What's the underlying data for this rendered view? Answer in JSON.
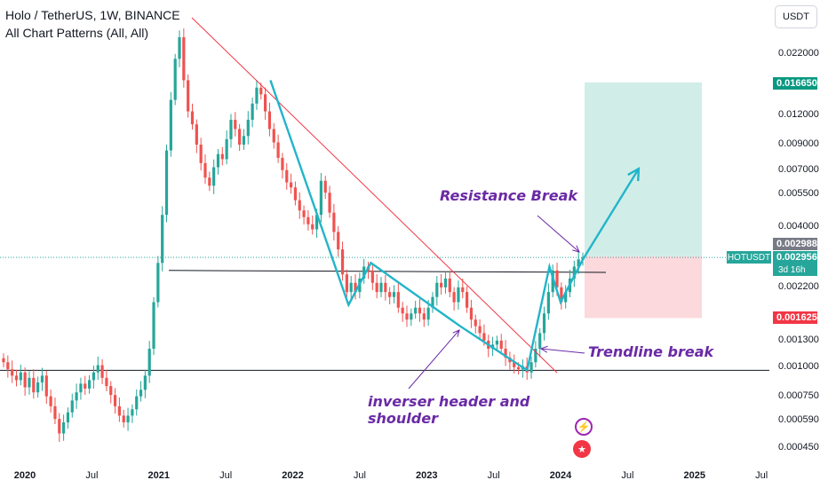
{
  "header": {
    "title": "Holo / TetherUS, 1W, BINANCE",
    "indicator": "All Chart Patterns (All, All)"
  },
  "currency_button": "USDT",
  "y_axis": {
    "labels": [
      {
        "text": "0.022000",
        "value": 0.022
      },
      {
        "text": "0.012000",
        "value": 0.012
      },
      {
        "text": "0.009000",
        "value": 0.009
      },
      {
        "text": "0.007000",
        "value": 0.007
      },
      {
        "text": "0.005500",
        "value": 0.0055
      },
      {
        "text": "0.004000",
        "value": 0.004
      },
      {
        "text": "0.002200",
        "value": 0.0022
      },
      {
        "text": "0.001300",
        "value": 0.0013
      },
      {
        "text": "0.001000",
        "value": 0.001
      },
      {
        "text": "0.000750",
        "value": 0.00075
      },
      {
        "text": "0.000590",
        "value": 0.00059
      },
      {
        "text": "0.000450",
        "value": 0.00045
      }
    ]
  },
  "x_axis": {
    "labels": [
      {
        "text": "2020",
        "bold": true
      },
      {
        "text": "Jul",
        "bold": false
      },
      {
        "text": "2021",
        "bold": true
      },
      {
        "text": "Jul",
        "bold": false
      },
      {
        "text": "2022",
        "bold": true
      },
      {
        "text": "Jul",
        "bold": false
      },
      {
        "text": "2023",
        "bold": true
      },
      {
        "text": "Jul",
        "bold": false
      },
      {
        "text": "2024",
        "bold": true
      },
      {
        "text": "Jul",
        "bold": false
      },
      {
        "text": "2025",
        "bold": true
      },
      {
        "text": "Jul",
        "bold": false
      }
    ]
  },
  "price_tags": {
    "target": {
      "text": "0.016650",
      "color": "#089981"
    },
    "high": {
      "text": "0.002988",
      "color": "#787b86"
    },
    "last": {
      "text": "0.002956",
      "color": "#26a69a"
    },
    "stop": {
      "text": "0.001625",
      "color": "#f23645"
    },
    "symbol": "HOTUSDT",
    "countdown": "3d 16h"
  },
  "annotations": {
    "resistance": "Resistance  Break",
    "trendline": "Trendline break",
    "pattern": "inverser header and shoulder"
  },
  "colors": {
    "up": "#26a69a",
    "down": "#ef5350",
    "pattern_line": "#22b5c9",
    "trendline": "#f23645",
    "profit_zone": "#d1ede8",
    "loss_zone": "#fbd9dc",
    "annotation": "#6a2aa5"
  },
  "chart_data": {
    "type": "candlestick",
    "symbol": "HOTUSDT",
    "interval": "1W",
    "key_levels": {
      "neckline": 0.0026,
      "support": 0.00097,
      "target": 0.01665,
      "stop_loss": 0.001625,
      "entry": 0.002988,
      "last_price": 0.002956
    },
    "pattern_points": [
      {
        "date": "2021-11",
        "price": 0.017
      },
      {
        "date": "2022-06",
        "price": 0.00185
      },
      {
        "date": "2022-08",
        "price": 0.0028
      },
      {
        "date": "2023-04",
        "price": 0.0015
      },
      {
        "date": "2023-10",
        "price": 0.00097
      },
      {
        "date": "2023-12",
        "price": 0.0027
      },
      {
        "date": "2024-01",
        "price": 0.0019
      },
      {
        "date": "2024-03",
        "price": 0.0029
      },
      {
        "date": "2024-08",
        "price": 0.0071
      }
    ],
    "closes": [
      0.00105,
      0.00098,
      0.00092,
      0.00088,
      0.00095,
      0.00082,
      0.0009,
      0.00078,
      0.00086,
      0.00092,
      0.00075,
      0.00068,
      0.0006,
      0.00052,
      0.00058,
      0.00064,
      0.00072,
      0.00078,
      0.00085,
      0.00081,
      0.00088,
      0.00095,
      0.00102,
      0.0009,
      0.00083,
      0.00076,
      0.00068,
      0.00062,
      0.00058,
      0.00062,
      0.00066,
      0.00075,
      0.0008,
      0.00092,
      0.0012,
      0.0019,
      0.0028,
      0.0045,
      0.0085,
      0.014,
      0.021,
      0.026,
      0.017,
      0.0125,
      0.011,
      0.009,
      0.0075,
      0.0065,
      0.006,
      0.0072,
      0.0082,
      0.0078,
      0.0095,
      0.0115,
      0.0105,
      0.009,
      0.0098,
      0.0115,
      0.0135,
      0.0158,
      0.0148,
      0.0125,
      0.0105,
      0.0092,
      0.0079,
      0.007,
      0.0062,
      0.0059,
      0.0052,
      0.0047,
      0.0044,
      0.0041,
      0.0039,
      0.0045,
      0.0063,
      0.0056,
      0.0046,
      0.0038,
      0.0032,
      0.0025,
      0.0021,
      0.0023,
      0.0021,
      0.0024,
      0.0027,
      0.0026,
      0.0023,
      0.0021,
      0.0023,
      0.0021,
      0.002,
      0.0021,
      0.0018,
      0.0017,
      0.0016,
      0.0017,
      0.0018,
      0.0017,
      0.0016,
      0.0018,
      0.002,
      0.0023,
      0.0022,
      0.0024,
      0.0021,
      0.0019,
      0.0022,
      0.0021,
      0.0018,
      0.0016,
      0.0015,
      0.0014,
      0.0013,
      0.0012,
      0.00125,
      0.0013,
      0.0012,
      0.0011,
      0.00105,
      0.001,
      0.00098,
      0.00101,
      0.00095,
      0.00105,
      0.0012,
      0.0014,
      0.0017,
      0.0021,
      0.0026,
      0.0022,
      0.0019,
      0.0021,
      0.0024,
      0.0027,
      0.0029,
      0.002956
    ]
  }
}
